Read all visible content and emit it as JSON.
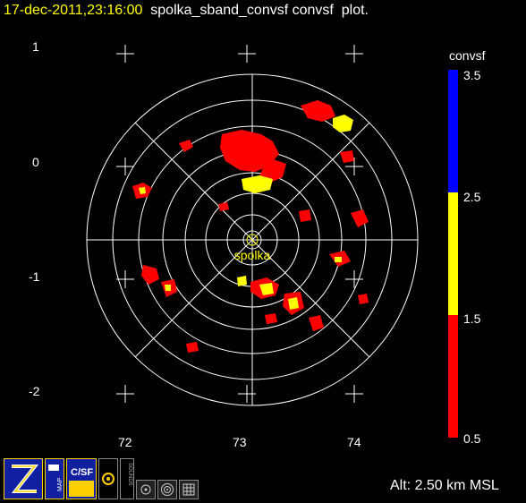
{
  "title": {
    "timestamp": "17-dec-2011,23:16:00",
    "product": "spolka_sband_convsf convsf  plot."
  },
  "station": {
    "name": "spolka"
  },
  "axes": {
    "y_ticks": [
      "1",
      "0",
      "-1",
      "-2"
    ],
    "x_ticks": [
      "72",
      "73",
      "74"
    ]
  },
  "colorbar": {
    "title": "convsf",
    "labels": [
      "3.5",
      "2.5",
      "1.5",
      "0.5"
    ],
    "colors": {
      "high": "#0000ff",
      "mid": "#ffff00",
      "low": "#ff0000"
    }
  },
  "altitude": {
    "label": "Alt: 2.50 km MSL"
  },
  "toolbar": {
    "tools": [
      {
        "name": "zebra-logo-icon"
      },
      {
        "name": "map-icon",
        "label": "MAP"
      },
      {
        "name": "csf-icon",
        "label": "C/SF"
      },
      {
        "name": "gear-icon"
      },
      {
        "name": "sounds-icon",
        "label": "SOUNDS"
      },
      {
        "name": "target-small-icon"
      },
      {
        "name": "target-large-icon"
      },
      {
        "name": "grid-icon"
      }
    ]
  }
}
